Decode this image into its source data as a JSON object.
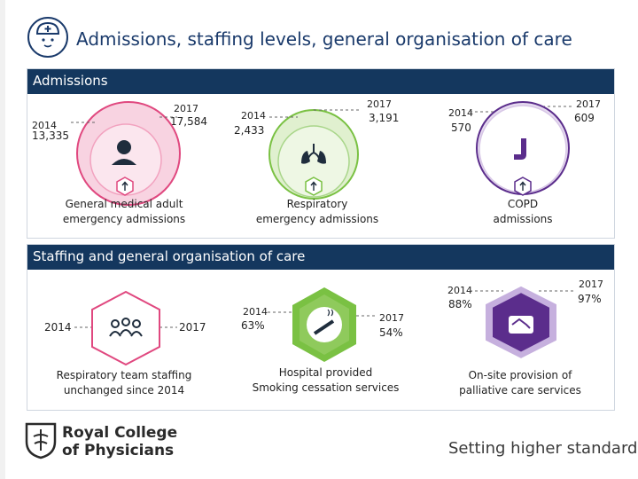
{
  "header": {
    "title": "Admissions, staffing levels, general organisation of care"
  },
  "admissions": {
    "heading": "Admissions",
    "items": [
      {
        "label_2014": "2014",
        "value_2014": "13,335",
        "label_2017": "2017",
        "value_2017": "17,584",
        "caption_line1": "General medical adult",
        "caption_line2": "emergency admissions",
        "icon": "person-icon"
      },
      {
        "label_2014": "2014",
        "value_2014": "2,433",
        "label_2017": "2017",
        "value_2017": "3,191",
        "caption_line1": "Respiratory",
        "caption_line2": "emergency admissions",
        "icon": "lungs-icon"
      },
      {
        "label_2014": "2014",
        "value_2014": "570",
        "label_2017": "2017",
        "value_2017": "609",
        "caption_line1": "COPD",
        "caption_line2": "admissions",
        "icon": "inhaler-icon"
      }
    ]
  },
  "staffing": {
    "heading": "Staffing and general organisation of care",
    "team": {
      "label_2014": "2014",
      "label_2017": "2017",
      "caption_line1": "Respiratory team staffing",
      "caption_line2": "unchanged since 2014",
      "icon": "team-icon"
    },
    "smoking": {
      "label_2014": "2014",
      "value_2014": "63%",
      "label_2017": "2017",
      "value_2017": "54%",
      "caption_line1": "Hospital provided",
      "caption_line2": "Smoking cessation services",
      "icon": "cigarette-icon"
    },
    "palliative": {
      "label_2014": "2014",
      "value_2014": "88%",
      "label_2017": "2017",
      "value_2017": "97%",
      "caption_line1": "On-site provision of",
      "caption_line2": "palliative care services",
      "icon": "handshake-icon"
    }
  },
  "footer": {
    "logo_line1": "Royal College",
    "logo_line2": "of Physicians",
    "tagline": "Setting higher standards"
  },
  "colors": {
    "navy": "#14375e",
    "pink": "#e0487f",
    "pink_light": "#f6c3d5",
    "green": "#7ac143",
    "green_light": "#cfe8b4",
    "purple": "#5b2d8c",
    "purple_light": "#d7c6e6"
  }
}
